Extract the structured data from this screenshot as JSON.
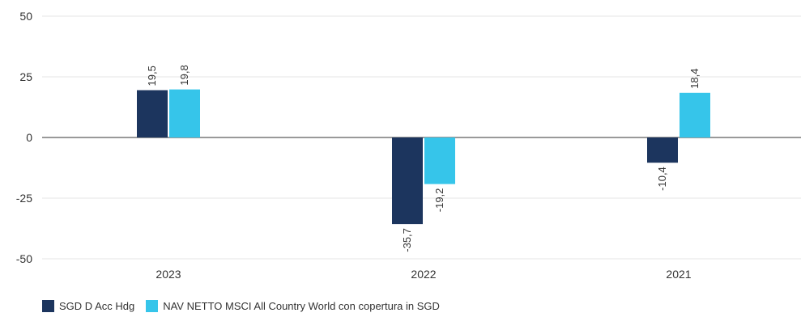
{
  "chart_data": {
    "type": "bar",
    "categories": [
      "2023",
      "2022",
      "2021"
    ],
    "series": [
      {
        "name": "SGD D Acc Hdg",
        "values": [
          19.5,
          -35.7,
          -10.4
        ],
        "labels": [
          "19,5",
          "-35,7",
          "-10,4"
        ],
        "color": "#1c355e"
      },
      {
        "name": "NAV NETTO MSCI All Country World con copertura in SGD",
        "values": [
          19.8,
          -19.2,
          18.4
        ],
        "labels": [
          "19,8",
          "-19,2",
          "18,4"
        ],
        "color": "#36c5ea"
      }
    ],
    "ylim": [
      -50,
      50
    ],
    "yticks": [
      50,
      25,
      0,
      -25,
      -50
    ],
    "grid": true,
    "legend": "bottom-left"
  }
}
